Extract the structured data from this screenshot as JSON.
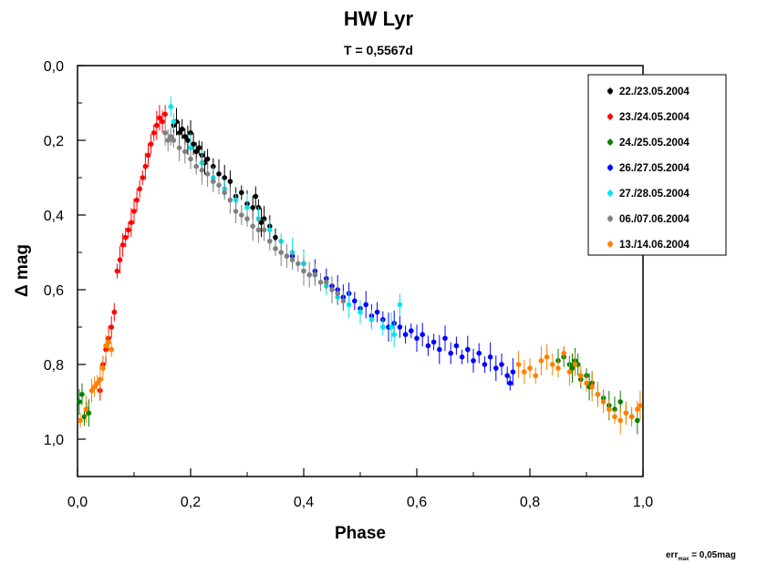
{
  "chart_data": {
    "type": "scatter",
    "title": "HW Lyr",
    "subtitle": "T = 0,5567d",
    "xlabel": "Phase",
    "ylabel": "Δ mag",
    "xlim": [
      0.0,
      1.0
    ],
    "ylim": [
      0.0,
      1.1
    ],
    "y_inverted": true,
    "x_ticks": [
      "0,0",
      "0,2",
      "0,4",
      "0,6",
      "0,8",
      "1,0"
    ],
    "y_ticks": [
      "0,0",
      "0,2",
      "0,4",
      "0,6",
      "0,8",
      "1,0"
    ],
    "legend_position": "top-right",
    "error_note": {
      "prefix": "err",
      "subscript": "max",
      "suffix": " = 0,05mag"
    },
    "series": [
      {
        "name": "22./23.05.2004",
        "color": "#000000",
        "points": [
          [
            0.17,
            0.16
          ],
          [
            0.175,
            0.15
          ],
          [
            0.18,
            0.18
          ],
          [
            0.185,
            0.17
          ],
          [
            0.19,
            0.19
          ],
          [
            0.195,
            0.2
          ],
          [
            0.2,
            0.18
          ],
          [
            0.205,
            0.21
          ],
          [
            0.21,
            0.23
          ],
          [
            0.215,
            0.22
          ],
          [
            0.22,
            0.24
          ],
          [
            0.225,
            0.26
          ],
          [
            0.23,
            0.25
          ],
          [
            0.24,
            0.27
          ],
          [
            0.25,
            0.29
          ],
          [
            0.26,
            0.3
          ],
          [
            0.27,
            0.31
          ],
          [
            0.28,
            0.35
          ],
          [
            0.29,
            0.34
          ],
          [
            0.3,
            0.37
          ],
          [
            0.31,
            0.38
          ],
          [
            0.315,
            0.35
          ],
          [
            0.32,
            0.38
          ],
          [
            0.325,
            0.42
          ],
          [
            0.33,
            0.41
          ],
          [
            0.34,
            0.43
          ],
          [
            0.35,
            0.46
          ]
        ]
      },
      {
        "name": "23./24.05.2004",
        "color": "#ff0000",
        "points": [
          [
            0.04,
            0.87
          ],
          [
            0.045,
            0.8
          ],
          [
            0.05,
            0.76
          ],
          [
            0.055,
            0.73
          ],
          [
            0.06,
            0.7
          ],
          [
            0.065,
            0.66
          ],
          [
            0.07,
            0.55
          ],
          [
            0.075,
            0.52
          ],
          [
            0.08,
            0.48
          ],
          [
            0.085,
            0.46
          ],
          [
            0.09,
            0.44
          ],
          [
            0.095,
            0.42
          ],
          [
            0.1,
            0.39
          ],
          [
            0.105,
            0.36
          ],
          [
            0.11,
            0.33
          ],
          [
            0.115,
            0.3
          ],
          [
            0.12,
            0.27
          ],
          [
            0.125,
            0.24
          ],
          [
            0.13,
            0.21
          ],
          [
            0.135,
            0.18
          ],
          [
            0.14,
            0.16
          ],
          [
            0.145,
            0.14
          ],
          [
            0.15,
            0.15
          ],
          [
            0.155,
            0.13
          ]
        ]
      },
      {
        "name": "24./25.05.2004",
        "color": "#008000",
        "points": [
          [
            0.003,
            0.9
          ],
          [
            0.008,
            0.88
          ],
          [
            0.012,
            0.94
          ],
          [
            0.016,
            0.92
          ],
          [
            0.02,
            0.93
          ],
          [
            0.85,
            0.79
          ],
          [
            0.86,
            0.78
          ],
          [
            0.87,
            0.8
          ],
          [
            0.875,
            0.81
          ],
          [
            0.88,
            0.79
          ],
          [
            0.885,
            0.8
          ],
          [
            0.89,
            0.84
          ],
          [
            0.9,
            0.83
          ],
          [
            0.905,
            0.86
          ],
          [
            0.91,
            0.85
          ],
          [
            0.92,
            0.88
          ],
          [
            0.93,
            0.89
          ],
          [
            0.94,
            0.91
          ],
          [
            0.95,
            0.92
          ],
          [
            0.96,
            0.9
          ],
          [
            0.97,
            0.93
          ],
          [
            0.98,
            0.94
          ],
          [
            0.99,
            0.95
          ]
        ]
      },
      {
        "name": "26./27.05.2004",
        "color": "#0000ff",
        "points": [
          [
            0.38,
            0.51
          ],
          [
            0.4,
            0.53
          ],
          [
            0.42,
            0.55
          ],
          [
            0.44,
            0.57
          ],
          [
            0.45,
            0.59
          ],
          [
            0.46,
            0.6
          ],
          [
            0.47,
            0.62
          ],
          [
            0.48,
            0.61
          ],
          [
            0.49,
            0.63
          ],
          [
            0.5,
            0.65
          ],
          [
            0.51,
            0.64
          ],
          [
            0.52,
            0.67
          ],
          [
            0.53,
            0.66
          ],
          [
            0.54,
            0.68
          ],
          [
            0.55,
            0.7
          ],
          [
            0.56,
            0.69
          ],
          [
            0.57,
            0.7
          ],
          [
            0.58,
            0.72
          ],
          [
            0.59,
            0.71
          ],
          [
            0.6,
            0.73
          ],
          [
            0.61,
            0.72
          ],
          [
            0.62,
            0.75
          ],
          [
            0.63,
            0.74
          ],
          [
            0.64,
            0.76
          ],
          [
            0.65,
            0.73
          ],
          [
            0.66,
            0.77
          ],
          [
            0.67,
            0.75
          ],
          [
            0.68,
            0.78
          ],
          [
            0.69,
            0.76
          ],
          [
            0.7,
            0.79
          ],
          [
            0.71,
            0.77
          ],
          [
            0.72,
            0.8
          ],
          [
            0.73,
            0.78
          ],
          [
            0.74,
            0.81
          ],
          [
            0.75,
            0.8
          ],
          [
            0.76,
            0.83
          ],
          [
            0.765,
            0.85
          ],
          [
            0.77,
            0.82
          ]
        ]
      },
      {
        "name": "27./28.05.2004",
        "color": "#00e5ee",
        "points": [
          [
            0.165,
            0.11
          ],
          [
            0.17,
            0.15
          ],
          [
            0.2,
            0.22
          ],
          [
            0.22,
            0.26
          ],
          [
            0.24,
            0.3
          ],
          [
            0.26,
            0.33
          ],
          [
            0.28,
            0.36
          ],
          [
            0.3,
            0.38
          ],
          [
            0.32,
            0.41
          ],
          [
            0.34,
            0.44
          ],
          [
            0.36,
            0.47
          ],
          [
            0.38,
            0.5
          ],
          [
            0.4,
            0.53
          ],
          [
            0.42,
            0.56
          ],
          [
            0.44,
            0.59
          ],
          [
            0.46,
            0.62
          ],
          [
            0.48,
            0.64
          ],
          [
            0.5,
            0.66
          ],
          [
            0.52,
            0.68
          ],
          [
            0.54,
            0.7
          ],
          [
            0.555,
            0.7
          ],
          [
            0.56,
            0.72
          ],
          [
            0.57,
            0.64
          ]
        ]
      },
      {
        "name": "06./07.06.2004",
        "color": "#808080",
        "points": [
          [
            0.155,
            0.18
          ],
          [
            0.16,
            0.2
          ],
          [
            0.165,
            0.19
          ],
          [
            0.17,
            0.2
          ],
          [
            0.18,
            0.22
          ],
          [
            0.19,
            0.23
          ],
          [
            0.2,
            0.25
          ],
          [
            0.21,
            0.27
          ],
          [
            0.22,
            0.28
          ],
          [
            0.23,
            0.29
          ],
          [
            0.24,
            0.31
          ],
          [
            0.25,
            0.32
          ],
          [
            0.26,
            0.34
          ],
          [
            0.27,
            0.36
          ],
          [
            0.28,
            0.39
          ],
          [
            0.29,
            0.4
          ],
          [
            0.3,
            0.41
          ],
          [
            0.31,
            0.43
          ],
          [
            0.32,
            0.44
          ],
          [
            0.33,
            0.44
          ],
          [
            0.34,
            0.47
          ],
          [
            0.35,
            0.49
          ],
          [
            0.36,
            0.5
          ],
          [
            0.37,
            0.51
          ],
          [
            0.38,
            0.52
          ],
          [
            0.39,
            0.53
          ],
          [
            0.4,
            0.55
          ],
          [
            0.41,
            0.56
          ],
          [
            0.42,
            0.56
          ],
          [
            0.43,
            0.58
          ],
          [
            0.44,
            0.58
          ],
          [
            0.45,
            0.6
          ],
          [
            0.46,
            0.61
          ],
          [
            0.47,
            0.63
          ]
        ]
      },
      {
        "name": "13./14.06.2004",
        "color": "#ff8000",
        "points": [
          [
            0.005,
            0.95
          ],
          [
            0.015,
            0.92
          ],
          [
            0.025,
            0.87
          ],
          [
            0.03,
            0.86
          ],
          [
            0.035,
            0.85
          ],
          [
            0.04,
            0.84
          ],
          [
            0.045,
            0.81
          ],
          [
            0.05,
            0.75
          ],
          [
            0.055,
            0.74
          ],
          [
            0.06,
            0.76
          ],
          [
            0.78,
            0.8
          ],
          [
            0.79,
            0.82
          ],
          [
            0.8,
            0.81
          ],
          [
            0.81,
            0.83
          ],
          [
            0.82,
            0.79
          ],
          [
            0.83,
            0.78
          ],
          [
            0.84,
            0.8
          ],
          [
            0.85,
            0.81
          ],
          [
            0.86,
            0.77
          ],
          [
            0.87,
            0.82
          ],
          [
            0.88,
            0.8
          ],
          [
            0.89,
            0.83
          ],
          [
            0.9,
            0.85
          ],
          [
            0.91,
            0.86
          ],
          [
            0.92,
            0.88
          ],
          [
            0.93,
            0.9
          ],
          [
            0.94,
            0.92
          ],
          [
            0.95,
            0.94
          ],
          [
            0.96,
            0.95
          ],
          [
            0.97,
            0.93
          ],
          [
            0.98,
            0.94
          ],
          [
            0.99,
            0.92
          ],
          [
            0.995,
            0.91
          ]
        ]
      }
    ]
  }
}
